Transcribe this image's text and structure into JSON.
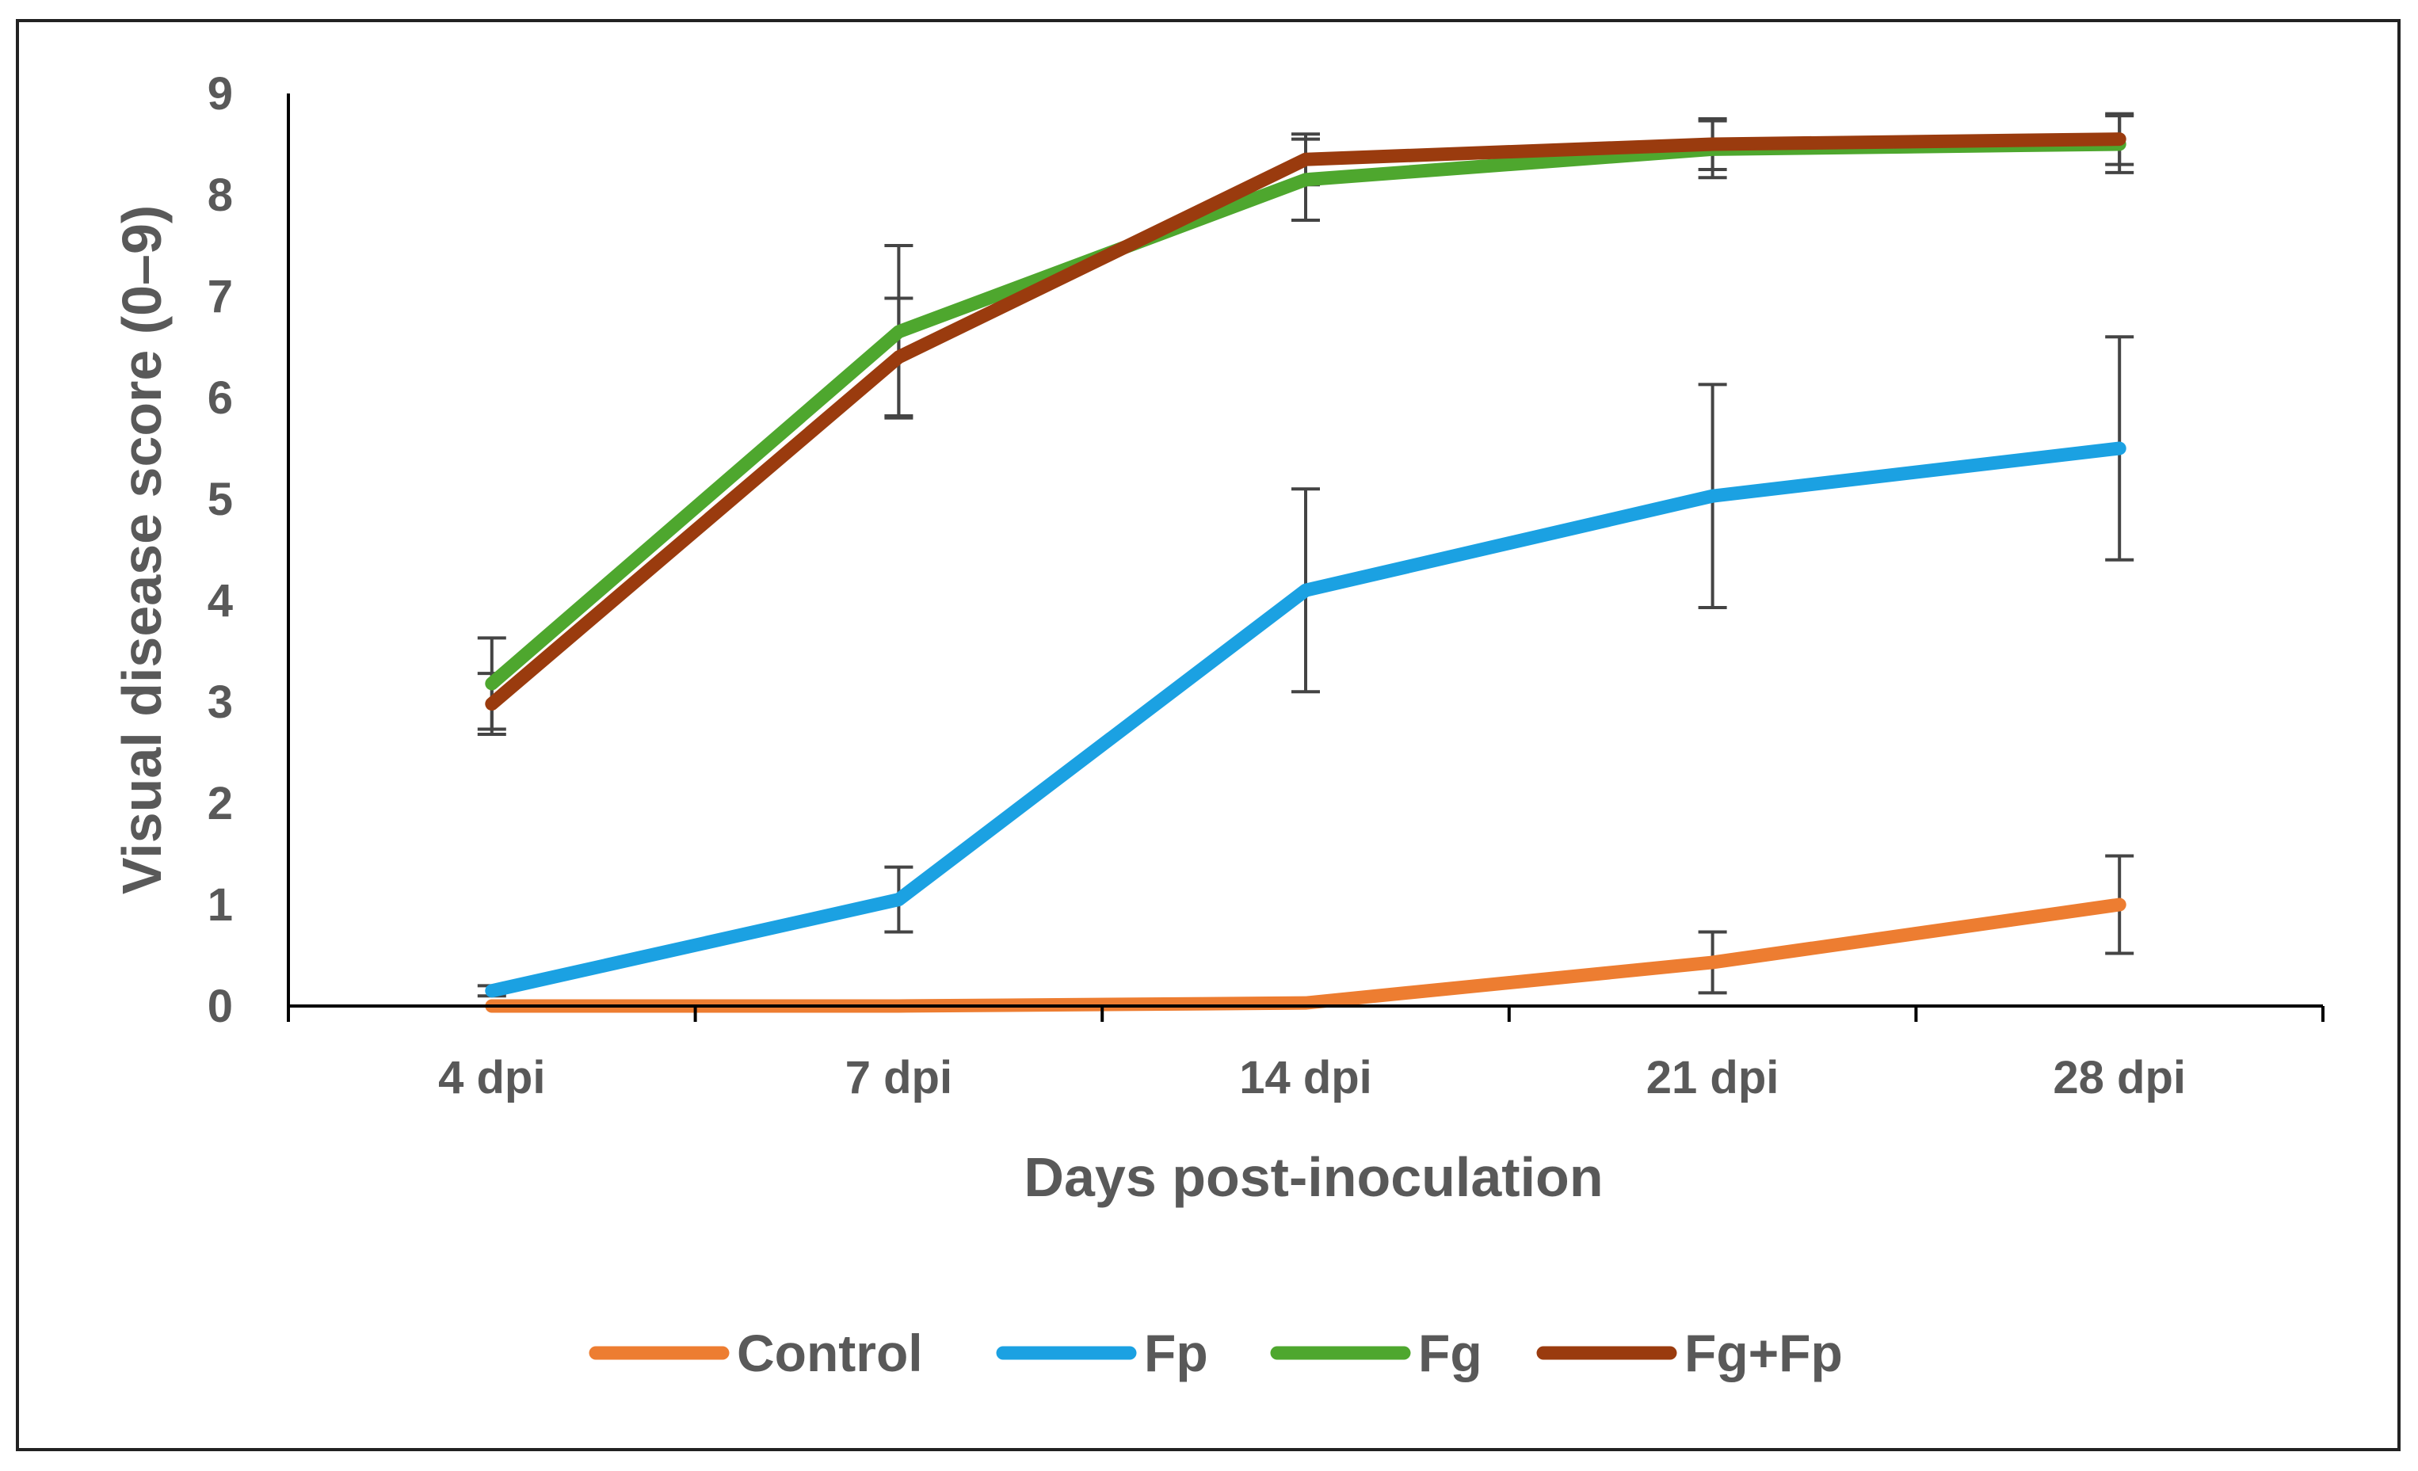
{
  "chart_data": {
    "type": "line",
    "title": "",
    "xlabel": "Days post-inoculation",
    "ylabel": "Visual disease score (0–9)",
    "categories": [
      "4 dpi",
      "7 dpi",
      "14 dpi",
      "21 dpi",
      "28 dpi"
    ],
    "ylim": [
      0,
      9
    ],
    "yticks": [
      "0",
      "1",
      "2",
      "3",
      "4",
      "5",
      "6",
      "7",
      "8",
      "9"
    ],
    "grid": false,
    "legend_position": "bottom",
    "series": [
      {
        "name": "Control",
        "color": "#ED7D31",
        "values": [
          0.0,
          0.0,
          0.03,
          0.43,
          1.0
        ],
        "errors": [
          0.0,
          0.0,
          0.0,
          0.3,
          0.48
        ]
      },
      {
        "name": "Fp",
        "color": "#1BA1E2",
        "values": [
          0.15,
          1.05,
          4.1,
          5.03,
          5.5
        ],
        "errors": [
          0.05,
          0.32,
          1.0,
          1.1,
          1.1
        ]
      },
      {
        "name": "Fg",
        "color": "#4EA72E",
        "values": [
          3.18,
          6.65,
          8.15,
          8.45,
          8.5
        ],
        "errors": [
          0.45,
          0.85,
          0.4,
          0.28,
          0.28
        ]
      },
      {
        "name": "Fg+Fp",
        "color": "#9A3B0E",
        "values": [
          2.98,
          6.4,
          8.35,
          8.5,
          8.55
        ],
        "errors": [
          0.3,
          0.58,
          0.25,
          0.25,
          0.25
        ]
      }
    ]
  }
}
